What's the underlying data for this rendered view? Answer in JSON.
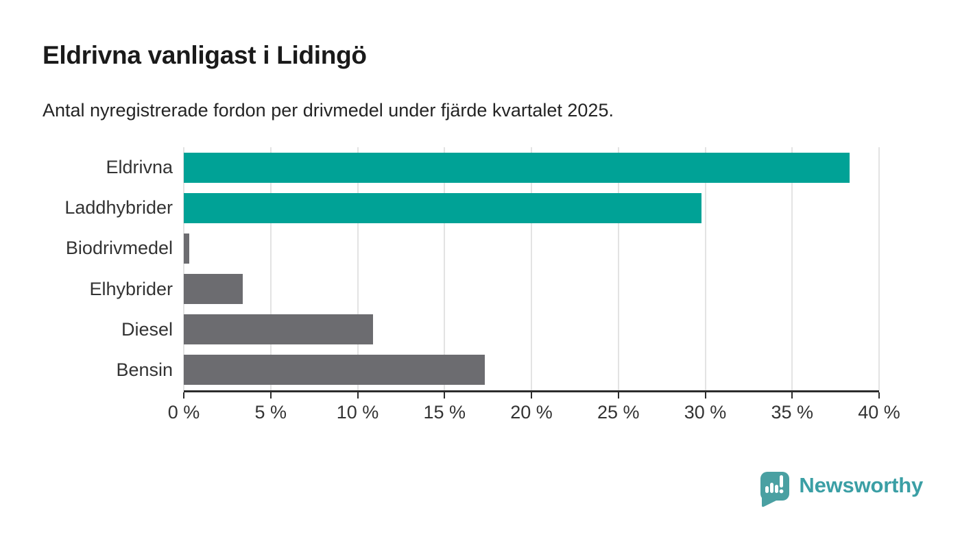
{
  "header": {
    "title": "Eldrivna vanligast i Lidingö",
    "subtitle": "Antal nyregistrerade fordon per drivmedel under fjärde kvartalet 2025."
  },
  "chart_data": {
    "type": "bar",
    "orientation": "horizontal",
    "title": "Eldrivna vanligast i Lidingö",
    "subtitle": "Antal nyregistrerade fordon per drivmedel under fjärde kvartalet 2025.",
    "categories": [
      "Eldrivna",
      "Laddhybrider",
      "Biodrivmedel",
      "Elhybrider",
      "Diesel",
      "Bensin"
    ],
    "values": [
      38.3,
      29.8,
      0.3,
      3.4,
      10.9,
      17.3
    ],
    "unit": "%",
    "bar_colors": [
      "#00a296",
      "#00a296",
      "#6c6c70",
      "#6c6c70",
      "#6c6c70",
      "#6c6c70"
    ],
    "highlight_color": "#00a296",
    "default_color": "#6c6c70",
    "xlim": [
      0,
      40
    ],
    "x_tick_step": 5,
    "x_tick_labels": [
      "0 %",
      "5 %",
      "10 %",
      "15 %",
      "20 %",
      "25 %",
      "30 %",
      "35 %",
      "40 %"
    ],
    "grid": "vertical",
    "gridline_color": "#e3e3e3",
    "axis_color": "#2b2b2b",
    "legend": "none"
  },
  "footer": {
    "brand": "Newsworthy",
    "brand_color": "#3b9fa5",
    "logo_color": "#4aa0a2",
    "logo_icon": "newsworthy-pin-chart-icon"
  }
}
